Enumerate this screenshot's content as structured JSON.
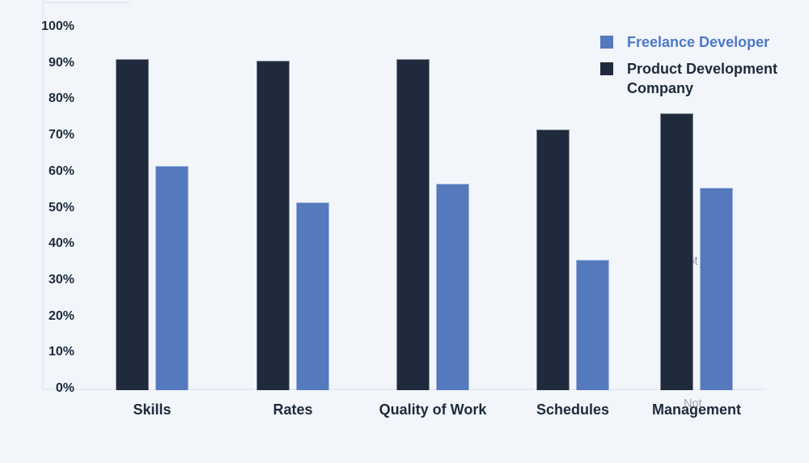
{
  "page": {
    "background_color": "#f2f5fa"
  },
  "legend": {
    "items": [
      {
        "label": "Freelance Developer",
        "swatch_color": "#5479bd",
        "text_color": "#4d79c6"
      },
      {
        "label": "Product Development Company",
        "swatch_color": "#1f2b3d",
        "text_color": "#1e2b3d"
      }
    ]
  },
  "watermarks": {
    "partial_text_between_bars": "Not",
    "partial_text_over_label": "Not"
  },
  "chart_data": {
    "type": "bar",
    "title": "",
    "xlabel": "",
    "ylabel": "",
    "categories": [
      "Skills",
      "Rates",
      "Quality of Work",
      "Schedules",
      "Management"
    ],
    "series": [
      {
        "name": "Freelance Developer",
        "color": "#5479bd",
        "values": [
          62,
          52,
          57,
          36,
          56
        ]
      },
      {
        "name": "Product Development Company",
        "color": "#1f2b3d",
        "values": [
          91.5,
          91,
          91.5,
          72,
          76.5
        ]
      }
    ],
    "bar_order_in_group": [
      "Product Development Company",
      "Freelance Developer"
    ],
    "ylim": [
      0,
      100
    ],
    "ytick_labels": [
      "0%",
      "10%",
      "20%",
      "30%",
      "40%",
      "50%",
      "60%",
      "70%",
      "80%",
      "90%",
      "100%"
    ],
    "grid": false,
    "legend_position": "top-right"
  }
}
